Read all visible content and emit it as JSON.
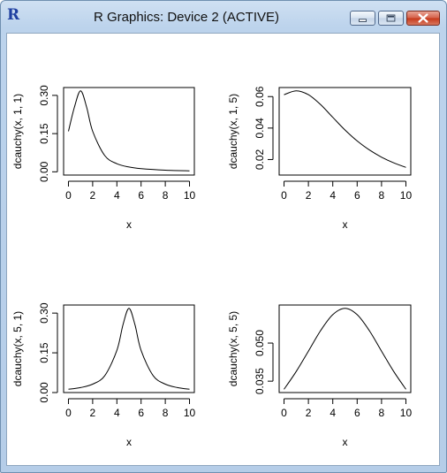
{
  "window": {
    "title": "R Graphics: Device 2 (ACTIVE)",
    "icon_glyph": "R",
    "icon_name": "r-logo-icon",
    "controls": [
      "minimize",
      "maximize",
      "close"
    ]
  },
  "chart_data": [
    {
      "type": "line",
      "title": "",
      "xlabel": "x",
      "ylabel": "dcauchy(x, 1, 1)",
      "xlim": [
        0,
        10
      ],
      "ylim": [
        0,
        0.3183
      ],
      "xticks": [
        0,
        2,
        4,
        6,
        8,
        10
      ],
      "yticks": [
        0.0,
        0.15,
        0.3
      ],
      "ytick_labels": [
        "0.00",
        "0.15",
        "0.30"
      ],
      "x": [
        0,
        0.5,
        1,
        1.5,
        2,
        3,
        4,
        5,
        6,
        8,
        10
      ],
      "y": [
        0.1592,
        0.2546,
        0.3183,
        0.2546,
        0.1592,
        0.0637,
        0.0318,
        0.0187,
        0.0122,
        0.0064,
        0.0039
      ],
      "grid": false,
      "legend": "none",
      "line_color": "#000000"
    },
    {
      "type": "line",
      "title": "",
      "xlabel": "x",
      "ylabel": "dcauchy(x, 1, 5)",
      "xlim": [
        0,
        10
      ],
      "ylim": [
        0.0122,
        0.0637
      ],
      "xticks": [
        0,
        2,
        4,
        6,
        8,
        10
      ],
      "yticks": [
        0.02,
        0.04,
        0.06
      ],
      "ytick_labels": [
        "0.02",
        "0.04",
        "0.06"
      ],
      "x": [
        0,
        1,
        2,
        3,
        4,
        5,
        6,
        7,
        8,
        9,
        10
      ],
      "y": [
        0.0612,
        0.0637,
        0.0612,
        0.0549,
        0.0468,
        0.0388,
        0.0318,
        0.0261,
        0.0215,
        0.0179,
        0.015
      ],
      "grid": false,
      "legend": "none",
      "line_color": "#000000"
    },
    {
      "type": "line",
      "title": "",
      "xlabel": "x",
      "ylabel": "dcauchy(x, 5, 1)",
      "xlim": [
        0,
        10
      ],
      "ylim": [
        0.0122,
        0.3183
      ],
      "xticks": [
        0,
        2,
        4,
        6,
        8,
        10
      ],
      "yticks": [
        0.0,
        0.15,
        0.3
      ],
      "ytick_labels": [
        "0.00",
        "0.15",
        "0.30"
      ],
      "x": [
        0,
        1,
        2,
        3,
        4,
        4.5,
        5,
        5.5,
        6,
        7,
        8,
        9,
        10
      ],
      "y": [
        0.0122,
        0.0187,
        0.0318,
        0.0637,
        0.1592,
        0.2546,
        0.3183,
        0.2546,
        0.1592,
        0.0637,
        0.0318,
        0.0187,
        0.0122
      ],
      "grid": false,
      "legend": "none",
      "line_color": "#000000"
    },
    {
      "type": "line",
      "title": "",
      "xlabel": "x",
      "ylabel": "dcauchy(x, 5, 5)",
      "xlim": [
        0,
        10
      ],
      "ylim": [
        0.0318,
        0.0637
      ],
      "xticks": [
        0,
        2,
        4,
        6,
        8,
        10
      ],
      "yticks": [
        0.035,
        0.05
      ],
      "ytick_labels": [
        "0.035",
        "0.050"
      ],
      "x": [
        0,
        1,
        2,
        3,
        4,
        5,
        6,
        7,
        8,
        9,
        10
      ],
      "y": [
        0.0318,
        0.0388,
        0.0468,
        0.0549,
        0.0612,
        0.0637,
        0.0612,
        0.0549,
        0.0468,
        0.0388,
        0.0318
      ],
      "grid": false,
      "legend": "none",
      "line_color": "#000000"
    }
  ]
}
